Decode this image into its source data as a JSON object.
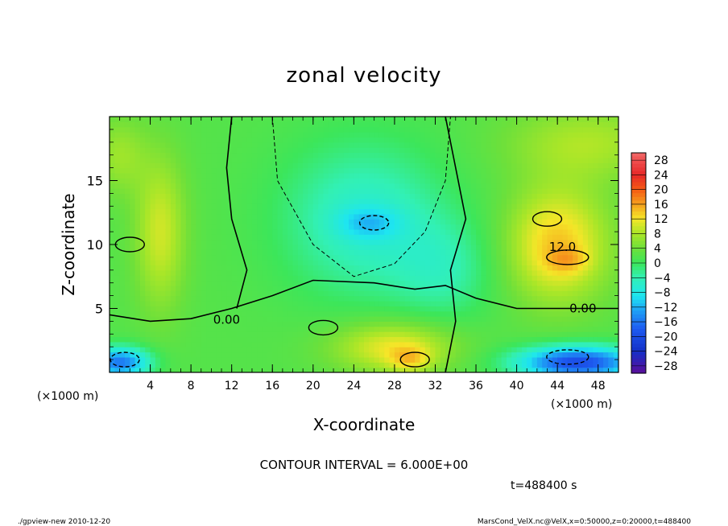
{
  "chart_data": {
    "type": "heatmap",
    "title": "zonal velocity",
    "xlabel": "X-coordinate",
    "ylabel": "Z-coordinate",
    "x_unit": "(×1000 m)",
    "y_unit": "(×1000 m)",
    "xlim": [
      0,
      50
    ],
    "ylim": [
      0,
      20
    ],
    "x_ticks": [
      "4",
      "8",
      "12",
      "16",
      "20",
      "24",
      "28",
      "32",
      "36",
      "40",
      "44",
      "48"
    ],
    "x_tick_values": [
      4,
      8,
      12,
      16,
      20,
      24,
      28,
      32,
      36,
      40,
      44,
      48
    ],
    "y_ticks": [
      "5",
      "10",
      "15"
    ],
    "y_tick_values": [
      5,
      10,
      15
    ],
    "colorbar_ticks": [
      "28",
      "24",
      "20",
      "16",
      "12",
      "8",
      "4",
      "0",
      "−4",
      "−8",
      "−12",
      "−16",
      "−20",
      "−24",
      "−28"
    ],
    "colorbar_values": [
      28,
      24,
      20,
      16,
      12,
      8,
      4,
      0,
      -4,
      -8,
      -12,
      -16,
      -20,
      -24,
      -28
    ],
    "contour_labels": [
      "12.0",
      "0.00",
      "0.00"
    ],
    "features": [
      {
        "kind": "max",
        "x": 45,
        "z": 9,
        "value": 16
      },
      {
        "kind": "max",
        "x": 30,
        "z": 1,
        "value": 14
      },
      {
        "kind": "max",
        "x": 43,
        "z": 12,
        "value": 13
      },
      {
        "kind": "min",
        "x": 26,
        "z": 11.7,
        "value": -11
      },
      {
        "kind": "min",
        "x": 45,
        "z": 1.2,
        "value": -17
      },
      {
        "kind": "min",
        "x": 1.5,
        "z": 1.0,
        "value": -14
      },
      {
        "kind": "max",
        "x": 21,
        "z": 3.5,
        "value": 10
      },
      {
        "kind": "max",
        "x": 2,
        "z": 10,
        "value": 10
      }
    ],
    "contour_interval_text": "CONTOUR INTERVAL = 6.000E+00",
    "time_text": "t=488400  s",
    "footer_left": "./gpview-new  2010-12-20",
    "footer_right": "MarsCond_VelX.nc@VelX,x=0:50000,z=0:20000,t=488400"
  }
}
